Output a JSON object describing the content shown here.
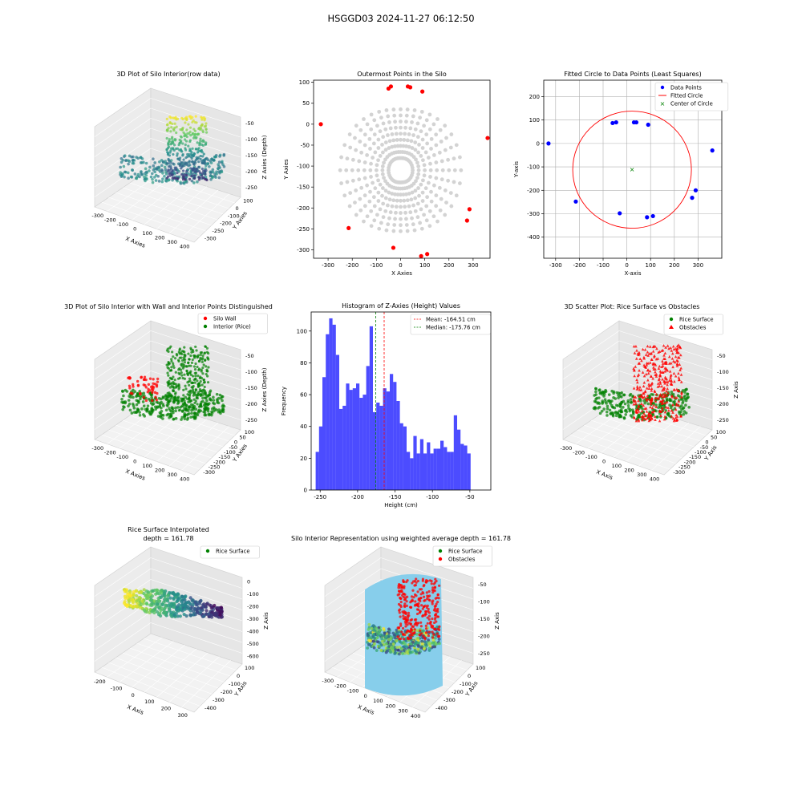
{
  "figure": {
    "suptitle": "HSGGD03 2024-11-27 06:12:50"
  },
  "chart_data": [
    {
      "id": "p1",
      "type": "scatter",
      "projection": "3d",
      "title": "3D Plot of Silo Interior(row data)",
      "xlabel": "X Axies",
      "ylabel": "Y Axies",
      "zlabel": "Z Axies (Depth)",
      "x_ticks": [
        "-300",
        "-200",
        "-100",
        "0",
        "100",
        "200",
        "300",
        "400"
      ],
      "y_ticks": [
        "100",
        "0",
        "-100",
        "-200",
        "-250",
        "-300"
      ],
      "z_ticks": [
        "-50",
        "-100",
        "-150",
        "-200",
        "-250"
      ],
      "colormap": "viridis",
      "grid": true
    },
    {
      "id": "p2",
      "type": "scatter",
      "title": "Outermost Points in the Silo",
      "xlabel": "X Axies",
      "ylabel": "Y Axies",
      "xlim": [
        -360,
        370
      ],
      "ylim": [
        -320,
        105
      ],
      "x_ticks": [
        -300,
        -200,
        -100,
        0,
        100,
        200,
        300
      ],
      "y_ticks": [
        100,
        50,
        0,
        -50,
        -100,
        -150,
        -200,
        -250,
        -300
      ],
      "series": [
        {
          "name": "",
          "color": "#d3d3d3",
          "role": "all points"
        },
        {
          "name": "",
          "color": "#ff0000",
          "role": "outermost points",
          "points": [
            [
              -330,
              0
            ],
            [
              -40,
              90
            ],
            [
              -50,
              85
            ],
            [
              30,
              90
            ],
            [
              40,
              88
            ],
            [
              90,
              78
            ],
            [
              360,
              -33
            ],
            [
              285,
              -203
            ],
            [
              275,
              -230
            ],
            [
              -215,
              -248
            ],
            [
              -30,
              -295
            ],
            [
              85,
              -315
            ],
            [
              110,
              -310
            ]
          ]
        }
      ]
    },
    {
      "id": "p3",
      "type": "scatter",
      "title": "Fitted Circle to Data Points (Least Squares)",
      "xlabel": "X-axis",
      "ylabel": "Y-axis",
      "xlim": [
        -350,
        400
      ],
      "ylim": [
        -490,
        270
      ],
      "x_ticks": [
        -300,
        -200,
        -100,
        0,
        100,
        200,
        300
      ],
      "y_ticks": [
        200,
        100,
        0,
        -100,
        -200,
        -300,
        -400
      ],
      "grid": true,
      "legend": [
        "Data Points",
        "Fitted Circle",
        "Center of Circle"
      ],
      "legend_position": "upper right",
      "data_points": [
        [
          -330,
          0
        ],
        [
          -60,
          87
        ],
        [
          -45,
          90
        ],
        [
          30,
          90
        ],
        [
          40,
          90
        ],
        [
          90,
          80
        ],
        [
          360,
          -30
        ],
        [
          290,
          -200
        ],
        [
          275,
          -232
        ],
        [
          -215,
          -248
        ],
        [
          -30,
          -298
        ],
        [
          85,
          -315
        ],
        [
          110,
          -310
        ]
      ],
      "circle": {
        "center": [
          22,
          -112
        ],
        "radius": 250
      },
      "colors": {
        "points": "#0000ff",
        "circle": "#ff0000",
        "center": "#008000"
      }
    },
    {
      "id": "p4",
      "type": "scatter",
      "projection": "3d",
      "title": "3D Plot of Silo Interior with Wall and Interior Points Distinguished",
      "xlabel": "X Axies",
      "ylabel": "Y Axies",
      "zlabel": "Z Axies (Depth)",
      "x_ticks": [
        "-300",
        "-200",
        "-100",
        "0",
        "100",
        "200",
        "300",
        "400"
      ],
      "y_ticks": [
        "100",
        "50",
        "0",
        "-50",
        "-100",
        "-150",
        "-200",
        "-250",
        "-300"
      ],
      "z_ticks": [
        "-50",
        "-100",
        "-150",
        "-200",
        "-250"
      ],
      "legend": [
        "Silo Wall",
        "Interior (Rice)"
      ],
      "legend_position": "upper right",
      "colors": {
        "wall": "#ff0000",
        "interior": "#008000"
      }
    },
    {
      "id": "p5",
      "type": "bar",
      "subtype": "histogram",
      "title": "Histogram of Z-Axies (Height) Values",
      "xlabel": "Height (cm)",
      "ylabel": "Frequency",
      "xlim": [
        -262,
        -22
      ],
      "ylim": [
        0,
        112
      ],
      "x_ticks": [
        -250,
        -200,
        -150,
        -100,
        -50
      ],
      "y_ticks": [
        0,
        20,
        40,
        60,
        80,
        100
      ],
      "bin_start": -256,
      "bin_width": 4.5,
      "counts": [
        24,
        40,
        71,
        98,
        108,
        104,
        85,
        51,
        53,
        67,
        63,
        64,
        67,
        58,
        60,
        78,
        103,
        49,
        55,
        53,
        64,
        62,
        73,
        68,
        56,
        42,
        40,
        24,
        20,
        34,
        23,
        32,
        23,
        30,
        23,
        26,
        26,
        31,
        27,
        24,
        24,
        47,
        38,
        29,
        28,
        23
      ],
      "color": "#0000ff",
      "mean": -164.51,
      "median": -175.76,
      "legend": [
        "Mean: -164.51 cm",
        "Median: -175.76 cm"
      ],
      "legend_position": "upper right"
    },
    {
      "id": "p6",
      "type": "scatter",
      "projection": "3d",
      "title": "3D Scatter Plot: Rice Surface vs Obstacles",
      "xlabel": "X Axis",
      "ylabel": "Y Axis",
      "zlabel": "Z Axis",
      "x_ticks": [
        "-300",
        "-200",
        "-100",
        "0",
        "100",
        "200",
        "300",
        "400"
      ],
      "y_ticks": [
        "100",
        "50",
        "0",
        "-50",
        "-100",
        "-150",
        "-200",
        "-250",
        "-300"
      ],
      "z_ticks": [
        "-50",
        "-100",
        "-150",
        "-200",
        "-250"
      ],
      "legend": [
        "Rice Surface",
        "Obstacles"
      ],
      "legend_position": "upper right",
      "colors": {
        "rice": "#008000",
        "obstacles": "#ff0000"
      }
    },
    {
      "id": "p7",
      "type": "scatter",
      "projection": "3d",
      "title": "Rice Surface Interpolated",
      "subtitle": "depth = 161.78",
      "xlabel": "X Axis",
      "ylabel": "Y Axis",
      "zlabel": "Z Axis",
      "x_ticks": [
        "-200",
        "-100",
        "0",
        "100",
        "200",
        "300"
      ],
      "y_ticks": [
        "100",
        "0",
        "-100",
        "-200",
        "-300",
        "-400"
      ],
      "z_ticks": [
        "0",
        "-100",
        "-200",
        "-300",
        "-400",
        "-500",
        "-600"
      ],
      "legend": [
        "Rice Surface"
      ],
      "legend_position": "upper right"
    },
    {
      "id": "p8",
      "type": "scatter",
      "projection": "3d",
      "title": "Silo Interior Representation using weighted average depth = 161.78",
      "xlabel": "X Axis",
      "ylabel": "Y Axis",
      "zlabel": "Z Axis",
      "x_ticks": [
        "-300",
        "-200",
        "-100",
        "0",
        "100",
        "200",
        "300",
        "400"
      ],
      "y_ticks": [
        "100",
        "0",
        "-100",
        "-200",
        "-300",
        "-400"
      ],
      "z_ticks": [
        "-50",
        "-100",
        "-150",
        "-200",
        "-250"
      ],
      "legend": [
        "Rice Surface",
        "Obstacles"
      ],
      "legend_position": "upper right",
      "colors": {
        "rice": "#008000",
        "obstacles": "#ff0000",
        "cylinder": "#87ceeb"
      }
    }
  ]
}
